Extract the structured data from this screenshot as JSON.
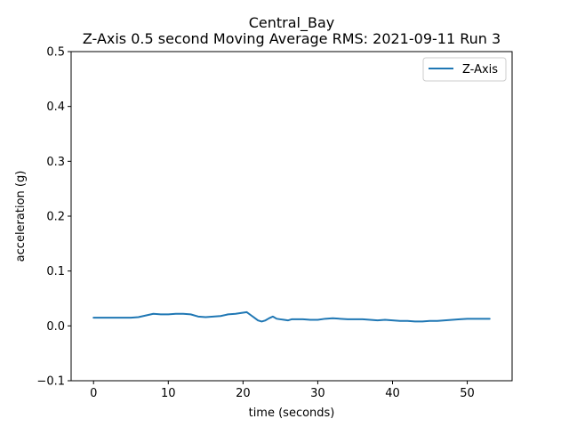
{
  "chart_data": {
    "type": "line",
    "title": "Central_Bay",
    "subtitle": "Z-Axis 0.5 second Moving Average RMS: 2021-09-11 Run 3",
    "xlabel": "time (seconds)",
    "ylabel": "acceleration (g)",
    "xlim": [
      -3,
      56
    ],
    "ylim": [
      -0.1,
      0.5
    ],
    "xticks": [
      0,
      10,
      20,
      30,
      40,
      50
    ],
    "yticks": [
      -0.1,
      0.0,
      0.1,
      0.2,
      0.3,
      0.4,
      0.5
    ],
    "xtick_labels": [
      "0",
      "10",
      "20",
      "30",
      "40",
      "50"
    ],
    "ytick_labels": [
      "−0.1",
      "0.0",
      "0.1",
      "0.2",
      "0.3",
      "0.4",
      "0.5"
    ],
    "grid": false,
    "legend_position": "top-right",
    "series": [
      {
        "name": "Z-Axis",
        "color": "#1f77b4",
        "x": [
          0,
          1,
          2,
          3,
          4,
          5,
          6,
          7,
          8,
          9,
          10,
          11,
          12,
          13,
          14,
          15,
          16,
          17,
          18,
          19,
          20,
          20.5,
          21,
          21.5,
          22,
          22.5,
          23,
          23.5,
          24,
          24.5,
          25,
          25.5,
          26,
          26.5,
          27,
          28,
          29,
          30,
          31,
          32,
          33,
          34,
          35,
          36,
          37,
          38,
          39,
          40,
          41,
          42,
          43,
          44,
          45,
          46,
          47,
          48,
          49,
          50,
          51,
          52,
          53
        ],
        "y": [
          0.015,
          0.015,
          0.015,
          0.015,
          0.015,
          0.015,
          0.016,
          0.019,
          0.022,
          0.021,
          0.021,
          0.022,
          0.022,
          0.021,
          0.017,
          0.016,
          0.017,
          0.018,
          0.021,
          0.022,
          0.024,
          0.025,
          0.02,
          0.015,
          0.01,
          0.008,
          0.01,
          0.014,
          0.017,
          0.013,
          0.012,
          0.011,
          0.01,
          0.012,
          0.012,
          0.012,
          0.011,
          0.011,
          0.013,
          0.014,
          0.013,
          0.012,
          0.012,
          0.012,
          0.011,
          0.01,
          0.011,
          0.01,
          0.009,
          0.009,
          0.008,
          0.008,
          0.009,
          0.009,
          0.01,
          0.011,
          0.012,
          0.013,
          0.013,
          0.013,
          0.013
        ]
      }
    ]
  }
}
